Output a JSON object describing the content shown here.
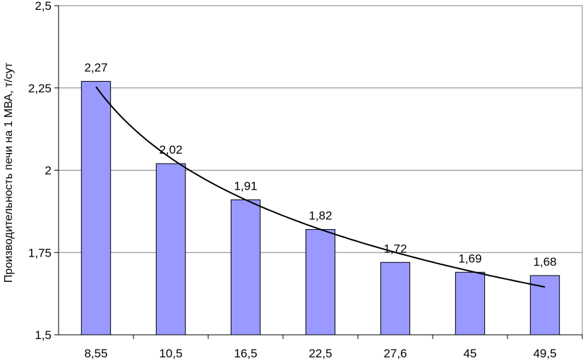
{
  "chart_data": {
    "type": "bar",
    "categories": [
      "8,55",
      "10,5",
      "16,5",
      "22,5",
      "27,6",
      "45",
      "49,5"
    ],
    "values": [
      2.27,
      2.02,
      1.91,
      1.82,
      1.72,
      1.69,
      1.68
    ],
    "data_labels": [
      "2,27",
      "2,02",
      "1,91",
      "1,82",
      "1,72",
      "1,69",
      "1,68"
    ],
    "ylabel": "Производительность печи на 1 МВА, т/сут",
    "xlabel": "",
    "ylim": [
      1.5,
      2.5
    ],
    "yticks": [
      1.5,
      1.75,
      2,
      2.25,
      2.5
    ],
    "ytick_labels": [
      "1,5",
      "1,75",
      "2",
      "2,25",
      "2,5"
    ],
    "grid": true,
    "trendline": {
      "type": "logarithmic"
    },
    "bar_color": "#9999ff",
    "bar_edge_color": "#000000"
  }
}
